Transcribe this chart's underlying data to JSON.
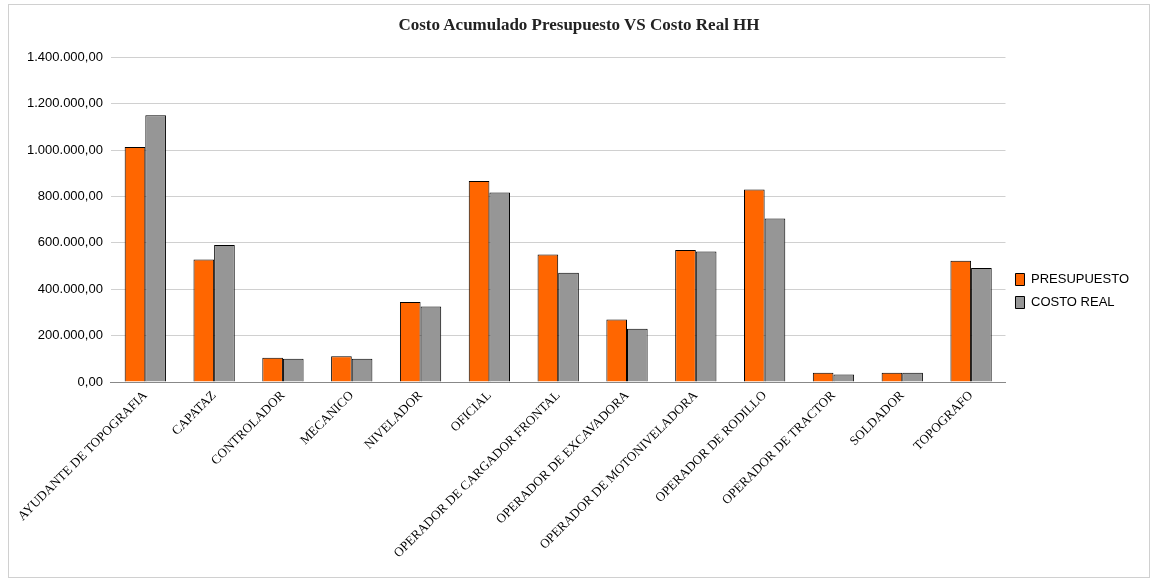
{
  "chart_data": {
    "type": "bar",
    "title": "Costo Acumulado Presupuesto VS Costo Real HH",
    "categories": [
      "AYUDANTE DE TOPOGRAFIA",
      "CAPATAZ",
      "CONTROLADOR",
      "MECANICO",
      "NIVELADOR",
      "OFICIAL",
      "OPERADOR DE CARGADOR FRONTAL",
      "OPERADOR DE EXCAVADORA",
      "OPERADOR DE MOTONIVELADORA",
      "OPERADOR DE RODILLO",
      "OPERADOR DE TRACTOR",
      "SOLDADOR",
      "TOPOGRAFO"
    ],
    "series": [
      {
        "name": "PRESUPUESTO",
        "color": "#ff6600",
        "values": [
          1014000,
          528000,
          105000,
          111000,
          345000,
          867000,
          550000,
          270000,
          569000,
          830000,
          40000,
          40000,
          523000
        ]
      },
      {
        "name": "COSTO REAL",
        "color": "#969696",
        "values": [
          1150000,
          591000,
          100000,
          100000,
          326000,
          817000,
          471000,
          230000,
          563000,
          705000,
          33000,
          40000,
          492000
        ]
      }
    ],
    "ylim": [
      0,
      1400000
    ],
    "yticks": [
      {
        "value": 0,
        "label": "0,00"
      },
      {
        "value": 200000,
        "label": "200.000,00"
      },
      {
        "value": 400000,
        "label": "400.000,00"
      },
      {
        "value": 600000,
        "label": "600.000,00"
      },
      {
        "value": 800000,
        "label": "800.000,00"
      },
      {
        "value": 1000000,
        "label": "1.000.000,00"
      },
      {
        "value": 1200000,
        "label": "1.200.000,00"
      },
      {
        "value": 1400000,
        "label": "1.400.000,00"
      }
    ],
    "grid": "y",
    "legend": "right"
  }
}
